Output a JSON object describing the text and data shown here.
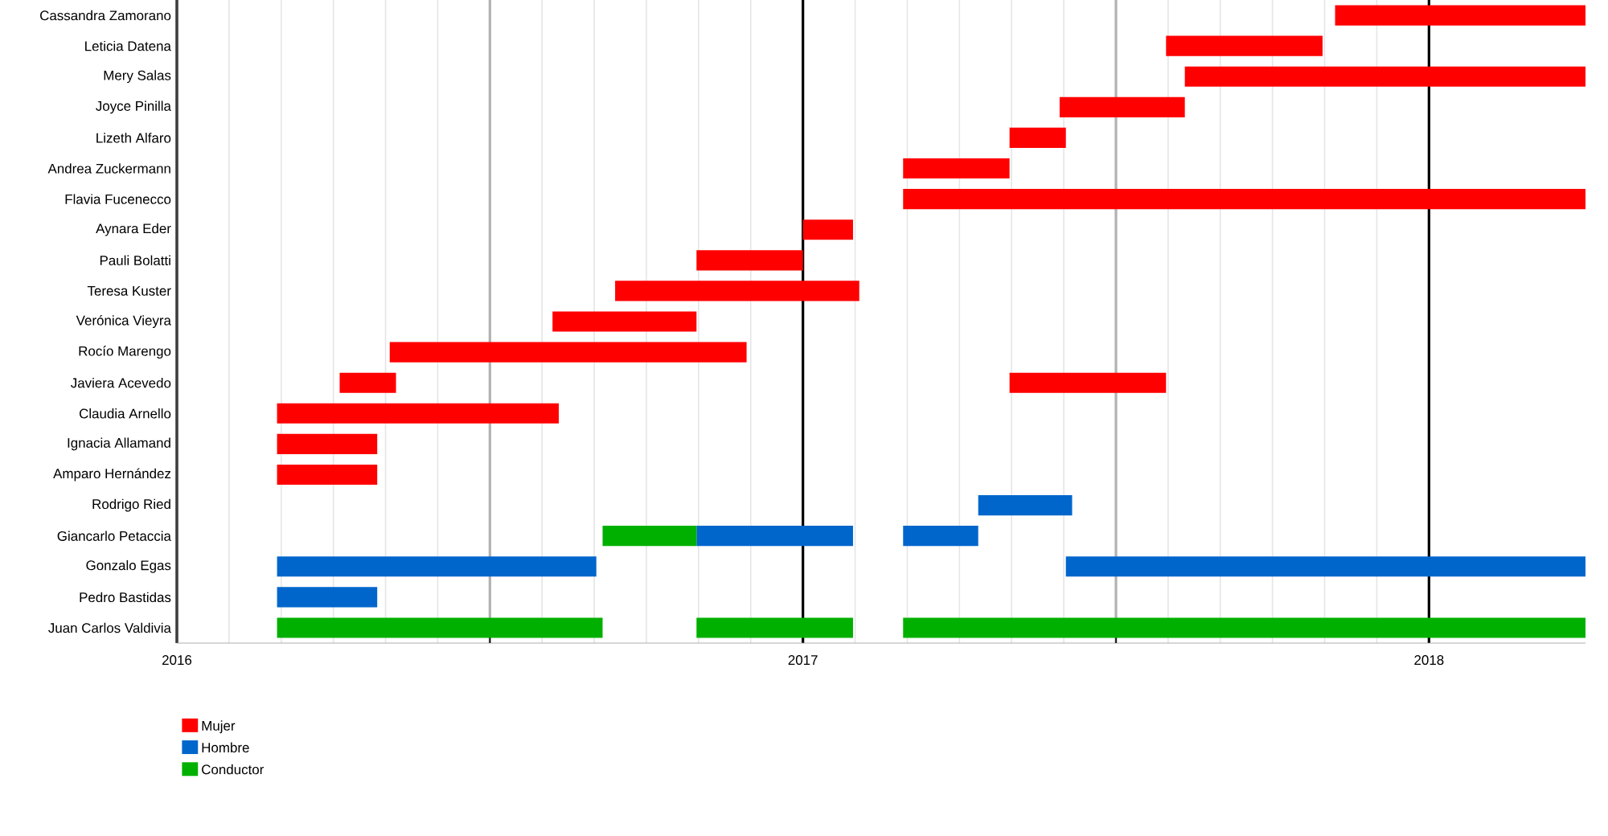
{
  "chart_data": {
    "type": "bar",
    "orientation": "horizontal",
    "categories": [
      "Cassandra Zamorano",
      "Leticia Datena",
      "Mery Salas",
      "Joyce Pinilla",
      "Lizeth Alfaro",
      "Andrea Zuckermann",
      "Flavia Fucenecco",
      "Aynara Eder",
      "Pauli Bolatti",
      "Teresa Kuster",
      "Verónica Vieyra",
      "Rocío Marengo",
      "Javiera Acevedo",
      "Claudia Arnello",
      "Ignacia Allamand",
      "Amparo Hernández",
      "Rodrigo Ried",
      "Giancarlo Petaccia",
      "Gonzalo Egas",
      "Pedro Bastidas",
      "Juan Carlos Valdivia"
    ],
    "series": [
      {
        "name": "Mujer",
        "color": "#ff0000",
        "base": [
          2017.85,
          2017.58,
          2017.61,
          2017.41,
          2017.33,
          2017.16,
          2017.16,
          2017.0,
          2016.83,
          2016.7,
          2016.6,
          2016.34,
          2016.26,
          2016.16,
          2016.16,
          2016.16,
          null,
          null,
          null,
          null,
          null
        ],
        "values": [
          0.4,
          0.25,
          0.64,
          0.2,
          0.09,
          0.17,
          1.09,
          0.08,
          0.17,
          0.39,
          0.23,
          0.57,
          0.09,
          0.45,
          0.16,
          0.16,
          null,
          null,
          null,
          null,
          null
        ]
      },
      {
        "color": "#ff0000",
        "base": [
          null,
          null,
          null,
          null,
          null,
          null,
          null,
          null,
          null,
          null,
          null,
          null,
          2017.33,
          null,
          null,
          null,
          null,
          null,
          null,
          null,
          null
        ],
        "values": [
          null,
          null,
          null,
          null,
          null,
          null,
          null,
          null,
          null,
          null,
          null,
          null,
          0.25,
          null,
          null,
          null,
          null,
          null,
          null,
          null,
          null
        ]
      },
      {
        "name": "Hombre",
        "color": "#0066cc",
        "base": [
          null,
          null,
          null,
          null,
          null,
          null,
          null,
          null,
          null,
          null,
          null,
          null,
          null,
          null,
          null,
          null,
          2017.28,
          2016.83,
          2016.16,
          2016.16,
          null
        ],
        "values": [
          null,
          null,
          null,
          null,
          null,
          null,
          null,
          null,
          null,
          null,
          null,
          null,
          null,
          null,
          null,
          null,
          0.15,
          0.25,
          0.51,
          0.16,
          null
        ]
      },
      {
        "color": "#0066cc",
        "base": [
          null,
          null,
          null,
          null,
          null,
          null,
          null,
          null,
          null,
          null,
          null,
          null,
          null,
          null,
          null,
          null,
          null,
          2017.16,
          2017.42,
          null,
          null
        ],
        "values": [
          null,
          null,
          null,
          null,
          null,
          null,
          null,
          null,
          null,
          null,
          null,
          null,
          null,
          null,
          null,
          null,
          null,
          0.12,
          0.83,
          null,
          null
        ]
      },
      {
        "name": "Conductor",
        "color": "#00b000",
        "base": [
          null,
          null,
          null,
          null,
          null,
          null,
          null,
          null,
          null,
          null,
          null,
          null,
          null,
          null,
          null,
          null,
          null,
          2016.68,
          null,
          null,
          2016.16
        ],
        "values": [
          null,
          null,
          null,
          null,
          null,
          null,
          null,
          null,
          null,
          null,
          null,
          null,
          null,
          null,
          null,
          null,
          null,
          0.15,
          null,
          null,
          0.52
        ]
      },
      {
        "color": "#00b000",
        "base": [
          null,
          null,
          null,
          null,
          null,
          null,
          null,
          null,
          null,
          null,
          null,
          null,
          null,
          null,
          null,
          null,
          null,
          null,
          null,
          null,
          2016.83
        ],
        "values": [
          null,
          null,
          null,
          null,
          null,
          null,
          null,
          null,
          null,
          null,
          null,
          null,
          null,
          null,
          null,
          null,
          null,
          null,
          null,
          null,
          0.25
        ]
      },
      {
        "color": "#00b000",
        "base": [
          null,
          null,
          null,
          null,
          null,
          null,
          null,
          null,
          null,
          null,
          null,
          null,
          null,
          null,
          null,
          null,
          null,
          null,
          null,
          null,
          2017.16
        ],
        "values": [
          null,
          null,
          null,
          null,
          null,
          null,
          null,
          null,
          null,
          null,
          null,
          null,
          null,
          null,
          null,
          null,
          null,
          null,
          null,
          null,
          1.09
        ]
      }
    ],
    "xlim": [
      2016,
      2018.25
    ],
    "xticks": [
      2016,
      {
        "value": 2016.5,
        "label": null
      },
      2017,
      {
        "value": 2017.5,
        "label": null
      },
      2018
    ],
    "grid": "x",
    "legend": "bottom left"
  }
}
